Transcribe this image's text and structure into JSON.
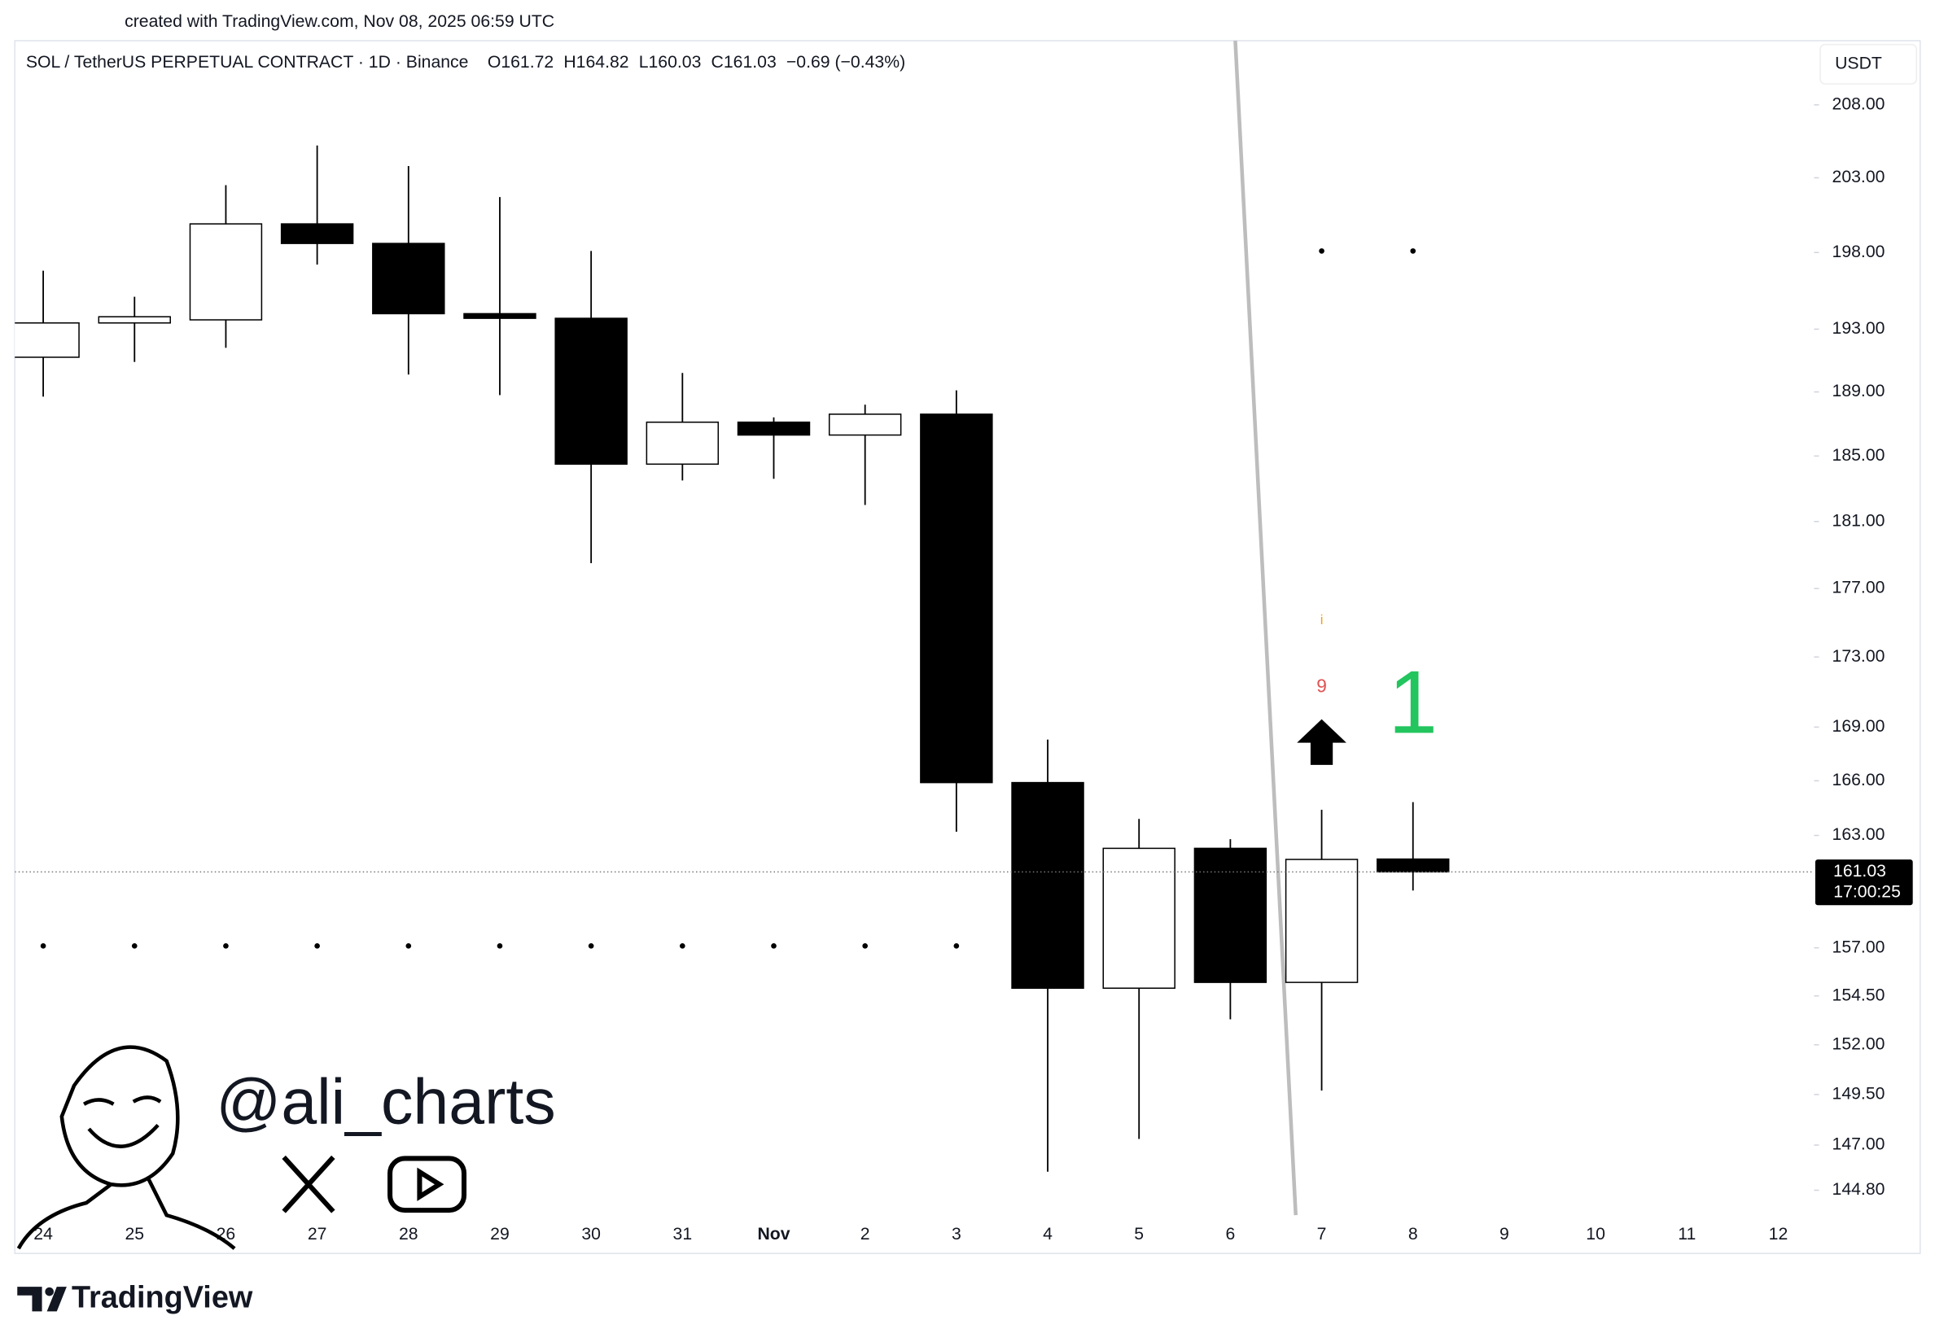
{
  "header": {
    "created": "created with TradingView.com, Nov 08, 2025 06:59 UTC",
    "symbol": "SOL / TetherUS PERPETUAL CONTRACT · 1D · Binance",
    "ohlc": [
      "O161.72",
      "H164.82",
      "L160.03",
      "C161.03",
      "−0.69 (−0.43%)"
    ],
    "currency": "USDT"
  },
  "chart_data": {
    "type": "candlestick",
    "categories": [
      "24",
      "25",
      "26",
      "27",
      "28",
      "29",
      "30",
      "31",
      "Nov",
      "2",
      "3",
      "4",
      "5",
      "6",
      "7",
      "8",
      "9",
      "10",
      "11",
      "12"
    ],
    "open": [
      191.2,
      193.4,
      193.6,
      199.9,
      198.6,
      194.0,
      193.7,
      184.5,
      187.1,
      186.3,
      187.6,
      165.9,
      154.9,
      162.3,
      155.2,
      161.72,
      null,
      null,
      null,
      null
    ],
    "high": [
      196.8,
      195.1,
      202.5,
      205.2,
      203.8,
      201.7,
      198.1,
      190.2,
      187.4,
      188.2,
      189.1,
      168.3,
      163.9,
      162.8,
      164.4,
      164.82,
      null,
      null,
      null,
      null
    ],
    "low": [
      188.7,
      190.9,
      191.8,
      197.2,
      190.1,
      188.8,
      178.5,
      183.5,
      183.6,
      182.0,
      163.2,
      145.7,
      147.3,
      153.3,
      149.7,
      160.03,
      null,
      null,
      null,
      null
    ],
    "close": [
      193.4,
      193.8,
      199.9,
      198.6,
      194.0,
      193.7,
      184.5,
      187.1,
      186.3,
      187.6,
      165.9,
      154.9,
      162.3,
      155.2,
      161.7,
      161.03,
      null,
      null,
      null,
      null
    ],
    "dots_low": [
      157.1,
      157.1,
      157.1,
      157.1,
      157.1,
      157.1,
      157.1,
      157.1,
      157.1,
      157.1,
      157.1,
      null,
      null,
      null,
      null,
      null,
      null,
      null,
      null,
      null
    ],
    "dots_high": [
      null,
      null,
      null,
      null,
      null,
      null,
      null,
      null,
      null,
      null,
      null,
      null,
      null,
      null,
      198.1,
      198.1,
      null,
      null,
      null,
      null
    ],
    "up_color": "#ffffff",
    "down_color": "#000000",
    "wick_color": "#000000",
    "log_scale": true,
    "grid": false,
    "ylim": [
      143.6,
      212.5
    ],
    "yticks": [
      {
        "value": 208,
        "label": "208.00"
      },
      {
        "value": 203,
        "label": "203.00"
      },
      {
        "value": 198,
        "label": "198.00"
      },
      {
        "value": 193,
        "label": "193.00"
      },
      {
        "value": 189,
        "label": "189.00"
      },
      {
        "value": 185,
        "label": "185.00"
      },
      {
        "value": 181,
        "label": "181.00"
      },
      {
        "value": 177,
        "label": "177.00"
      },
      {
        "value": 173,
        "label": "173.00"
      },
      {
        "value": 169,
        "label": "169.00"
      },
      {
        "value": 166,
        "label": "166.00"
      },
      {
        "value": 163,
        "label": "163.00"
      },
      {
        "value": 157,
        "label": "157.00"
      },
      {
        "value": 154.5,
        "label": "154.50"
      },
      {
        "value": 152,
        "label": "152.00"
      },
      {
        "value": 149.5,
        "label": "149.50"
      },
      {
        "value": 147,
        "label": "147.00"
      },
      {
        "value": 144.8,
        "label": "144.80"
      }
    ],
    "last_price": 161.03,
    "countdown": "17:00:25",
    "annotations": [
      {
        "text": "i",
        "color": "#f59e0b"
      },
      {
        "text": "9",
        "color": "#e05252"
      },
      {
        "text": "1",
        "color": "#22c55e"
      }
    ]
  },
  "watermark": "@ali_charts",
  "brand": "TradingView"
}
